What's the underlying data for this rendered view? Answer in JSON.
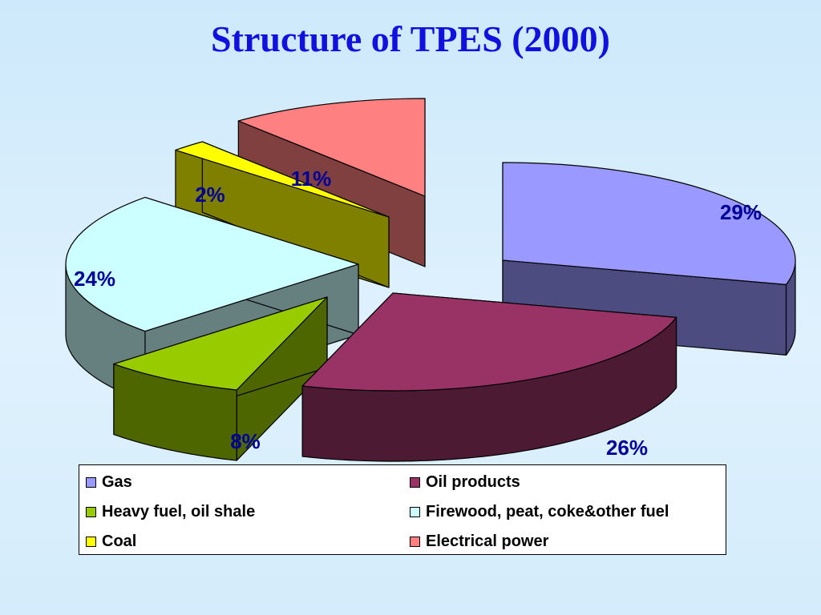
{
  "title": "Structure of TPES (2000)",
  "chart_data": {
    "type": "pie",
    "title": "Structure of TPES (2000)",
    "slices": [
      {
        "name": "Gas",
        "value": 29,
        "label": "29%",
        "color": "#9999ff",
        "side_color": "#4c4c80"
      },
      {
        "name": "Oil products",
        "value": 26,
        "label": "26%",
        "color": "#993366",
        "side_color": "#4d1a33"
      },
      {
        "name": "Heavy fuel, oil shale",
        "value": 8,
        "label": "8%",
        "color": "#99cc00",
        "side_color": "#4d6600"
      },
      {
        "name": "Firewood, peat, coke&other fuel",
        "value": 24,
        "label": "24%",
        "color": "#ccffff",
        "side_color": "#668080"
      },
      {
        "name": "Coal",
        "value": 2,
        "label": "2%",
        "color": "#ffff00",
        "side_color": "#808000"
      },
      {
        "name": "Electrical power",
        "value": 11,
        "label": "11%",
        "color": "#ff8080",
        "side_color": "#804040"
      }
    ],
    "exploded": true,
    "style": "3d",
    "legend_position": "bottom",
    "label_color": "#000099"
  },
  "legend": [
    {
      "label": "Gas",
      "color": "#9999ff"
    },
    {
      "label": "Oil products",
      "color": "#993366"
    },
    {
      "label": "Heavy fuel, oil shale",
      "color": "#99cc00"
    },
    {
      "label": "Firewood, peat, coke&other fuel",
      "color": "#ccffff"
    },
    {
      "label": "Coal",
      "color": "#ffff00"
    },
    {
      "label": "Electrical power",
      "color": "#ff8080"
    }
  ]
}
